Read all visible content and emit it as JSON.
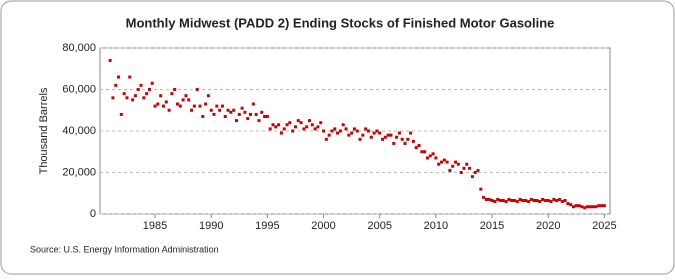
{
  "chart_data": {
    "type": "scatter",
    "title": "Monthly Midwest (PADD 2) Ending Stocks of Finished Motor Gasoline",
    "y_label": "Thousand Barrels",
    "source": "Source: U.S. Energy Information Administration",
    "color": "#cc0000",
    "grid": true,
    "xlim": [
      1980.1,
      2025.5
    ],
    "ylim": [
      0,
      80000
    ],
    "xticks": [
      1985,
      1990,
      1995,
      2000,
      2005,
      2010,
      2015,
      2020,
      2025
    ],
    "yticks": [
      0,
      {
        "value": 20000,
        "label": "20,000"
      },
      {
        "value": 40000,
        "label": "40,000"
      },
      {
        "value": 60000,
        "label": "60,000"
      },
      {
        "value": 80000,
        "label": "80,000"
      }
    ],
    "series": [
      {
        "name": "Midwest (PADD 2) Ending Stocks of Finished Motor Gasoline",
        "color": "#cc0000",
        "x": [
          1981,
          1981.25,
          1981.5,
          1981.75,
          1982,
          1982.25,
          1982.5,
          1982.75,
          1983,
          1983.25,
          1983.5,
          1983.75,
          1984,
          1984.25,
          1984.5,
          1984.75,
          1985,
          1985.25,
          1985.5,
          1985.75,
          1986,
          1986.25,
          1986.5,
          1986.75,
          1987,
          1987.25,
          1987.5,
          1987.75,
          1988,
          1988.25,
          1988.5,
          1988.75,
          1989,
          1989.25,
          1989.5,
          1989.75,
          1990,
          1990.25,
          1990.5,
          1990.75,
          1991,
          1991.25,
          1991.5,
          1991.75,
          1992,
          1992.25,
          1992.5,
          1992.75,
          1993,
          1993.25,
          1993.5,
          1993.75,
          1994,
          1994.25,
          1994.5,
          1994.75,
          1995,
          1995.25,
          1995.5,
          1995.75,
          1996,
          1996.25,
          1996.5,
          1996.75,
          1997,
          1997.25,
          1997.5,
          1997.75,
          1998,
          1998.25,
          1998.5,
          1998.75,
          1999,
          1999.25,
          1999.5,
          1999.75,
          2000,
          2000.25,
          2000.5,
          2000.75,
          2001,
          2001.25,
          2001.5,
          2001.75,
          2002,
          2002.25,
          2002.5,
          2002.75,
          2003,
          2003.25,
          2003.5,
          2003.75,
          2004,
          2004.25,
          2004.5,
          2004.75,
          2005,
          2005.25,
          2005.5,
          2005.75,
          2006,
          2006.25,
          2006.5,
          2006.75,
          2007,
          2007.25,
          2007.5,
          2007.75,
          2008,
          2008.25,
          2008.5,
          2008.75,
          2009,
          2009.25,
          2009.5,
          2009.75,
          2010,
          2010.25,
          2010.5,
          2010.75,
          2011,
          2011.25,
          2011.5,
          2011.75,
          2012,
          2012.25,
          2012.5,
          2012.75,
          2013,
          2013.25,
          2013.5,
          2013.75,
          2014,
          2014.25,
          2014.5,
          2014.75,
          2015,
          2015.25,
          2015.5,
          2015.75,
          2016,
          2016.25,
          2016.5,
          2016.75,
          2017,
          2017.25,
          2017.5,
          2017.75,
          2018,
          2018.25,
          2018.5,
          2018.75,
          2019,
          2019.25,
          2019.5,
          2019.75,
          2020,
          2020.25,
          2020.5,
          2020.75,
          2021,
          2021.25,
          2021.5,
          2021.75,
          2022,
          2022.25,
          2022.5,
          2022.75,
          2023,
          2023.25,
          2023.5,
          2023.75,
          2024,
          2024.25,
          2024.5,
          2024.75,
          2025
        ],
        "values": [
          74000,
          56000,
          62000,
          66000,
          48000,
          58000,
          56000,
          66000,
          55000,
          57000,
          60000,
          62000,
          56000,
          58000,
          60000,
          63000,
          52000,
          53000,
          57000,
          52000,
          54000,
          50000,
          58000,
          60000,
          53000,
          52000,
          55000,
          57000,
          55000,
          50000,
          52000,
          60000,
          52000,
          47000,
          53000,
          57000,
          50000,
          48000,
          52000,
          50000,
          52000,
          47000,
          50000,
          49000,
          50000,
          45000,
          48000,
          51000,
          49000,
          46000,
          48000,
          53000,
          48000,
          45000,
          49000,
          47000,
          47000,
          41000,
          43000,
          42000,
          43000,
          39000,
          41000,
          43000,
          44000,
          40000,
          42000,
          45000,
          44000,
          41000,
          42000,
          45000,
          43000,
          41000,
          42000,
          44000,
          40000,
          36000,
          38000,
          40000,
          41000,
          39000,
          40000,
          43000,
          41000,
          38000,
          39000,
          41000,
          40000,
          36000,
          38000,
          41000,
          40000,
          37000,
          39000,
          40000,
          39000,
          36000,
          37000,
          38000,
          38000,
          34000,
          37000,
          39000,
          36000,
          34000,
          36000,
          39000,
          35000,
          32000,
          33000,
          30000,
          30000,
          27000,
          28000,
          29000,
          27000,
          24000,
          25000,
          26000,
          25000,
          21000,
          23000,
          25000,
          24000,
          20000,
          22000,
          24000,
          22000,
          18000,
          20000,
          21000,
          12000,
          8000,
          7000,
          7000,
          6500,
          6000,
          7000,
          6500,
          6500,
          6000,
          7000,
          6500,
          6500,
          6000,
          7000,
          6500,
          6500,
          6000,
          7000,
          6500,
          6500,
          6000,
          7000,
          6500,
          6500,
          6000,
          7000,
          6500,
          7000,
          6000,
          6500,
          5000,
          4500,
          3500,
          4000,
          4000,
          3500,
          3000,
          3500,
          3500,
          3500,
          3500,
          4000,
          4000,
          4000
        ]
      }
    ]
  }
}
